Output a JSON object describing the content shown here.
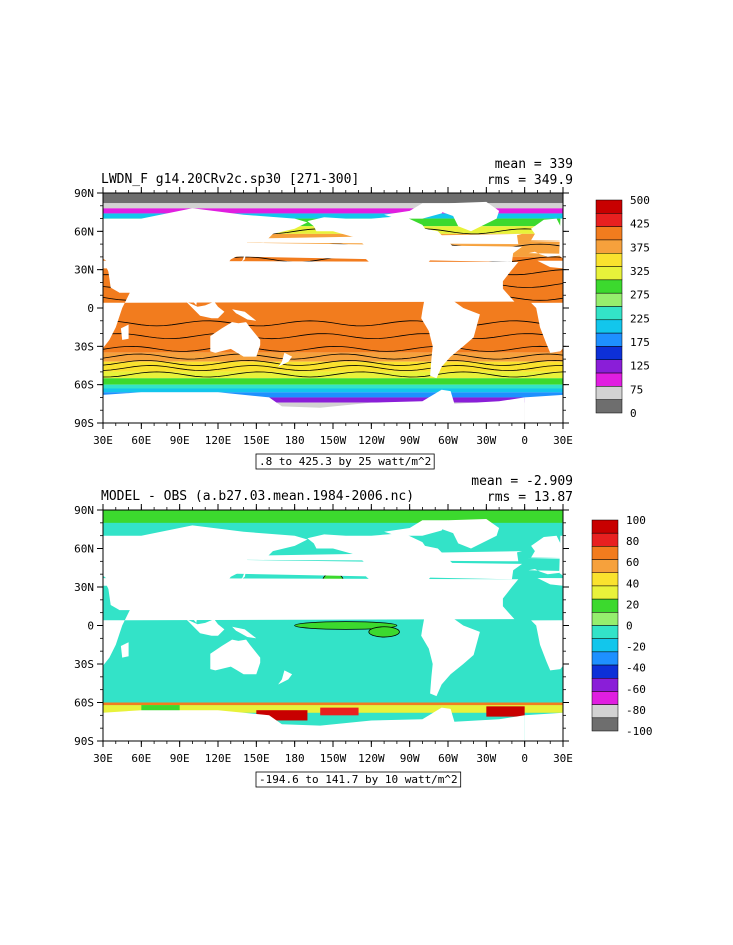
{
  "chart_data": [
    {
      "type": "heatmap",
      "title": "LWDN_F g14.20CRv2c.sp30 [271-300]",
      "stats": {
        "mean": "mean = 339",
        "rms": "rms = 349.9"
      },
      "x_ticks": [
        "30E",
        "60E",
        "90E",
        "120E",
        "150E",
        "180",
        "150W",
        "120W",
        "90W",
        "60W",
        "30W",
        "0",
        "30E"
      ],
      "y_ticks": [
        "90N",
        "60N",
        "30N",
        "0",
        "30S",
        "60S",
        "90S"
      ],
      "xlim": [
        30,
        390
      ],
      "ylim": [
        -90,
        90
      ],
      "contour_info": ".8 to 425.3 by 25 watt/m^2",
      "colorbar": {
        "labels": [
          "500",
          "425",
          "375",
          "325",
          "275",
          "225",
          "175",
          "125",
          "75",
          "0"
        ],
        "colors": [
          "#c80000",
          "#e82020",
          "#f27c1e",
          "#f6a13c",
          "#fae22e",
          "#e8f23a",
          "#3cd92e",
          "#96ee6e",
          "#33e3c8",
          "#12c6ec",
          "#1e90ff",
          "#0d30d8",
          "#8a1ed8",
          "#e01ee0",
          "#d2d2d2",
          "#6e6e6e"
        ]
      }
    },
    {
      "type": "heatmap",
      "title": "MODEL - OBS (a.b27.03.mean.1984-2006.nc)",
      "stats": {
        "mean": "mean = -2.909",
        "rms": "rms = 13.87"
      },
      "x_ticks": [
        "30E",
        "60E",
        "90E",
        "120E",
        "150E",
        "180",
        "150W",
        "120W",
        "90W",
        "60W",
        "30W",
        "0",
        "30E"
      ],
      "y_ticks": [
        "90N",
        "60N",
        "30N",
        "0",
        "30S",
        "60S",
        "90S"
      ],
      "xlim": [
        30,
        390
      ],
      "ylim": [
        -90,
        90
      ],
      "contour_info": "-194.6 to 141.7 by 10 watt/m^2",
      "colorbar": {
        "labels": [
          "100",
          "80",
          "60",
          "40",
          "20",
          "0",
          "-20",
          "-40",
          "-60",
          "-80",
          "-100"
        ],
        "colors": [
          "#c80000",
          "#e82020",
          "#f27c1e",
          "#f6a13c",
          "#fae22e",
          "#e8f23a",
          "#3cd92e",
          "#96ee6e",
          "#33e3c8",
          "#12c6ec",
          "#1e90ff",
          "#0d30d8",
          "#8a1ed8",
          "#e01ee0",
          "#d2d2d2",
          "#6e6e6e"
        ]
      }
    }
  ]
}
